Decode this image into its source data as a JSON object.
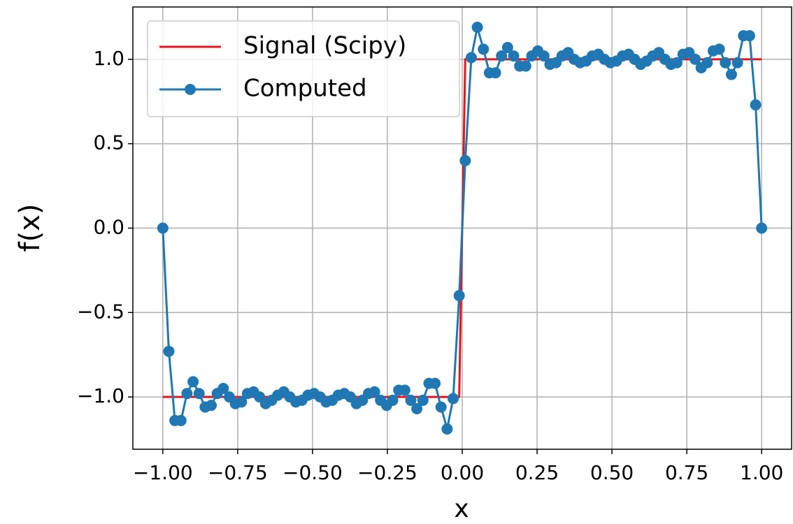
{
  "chart_data": {
    "type": "line",
    "x_label": "x",
    "y_label": "f(x)",
    "x": [
      -1,
      -0.9798,
      -0.9596,
      -0.9394,
      -0.9192,
      -0.899,
      -0.8788,
      -0.8586,
      -0.8384,
      -0.8182,
      -0.798,
      -0.7778,
      -0.7576,
      -0.7374,
      -0.7172,
      -0.697,
      -0.6768,
      -0.6566,
      -0.6364,
      -0.6162,
      -0.596,
      -0.5758,
      -0.5556,
      -0.5354,
      -0.5152,
      -0.4949,
      -0.4747,
      -0.4545,
      -0.4343,
      -0.4141,
      -0.3939,
      -0.3737,
      -0.3535,
      -0.3333,
      -0.3131,
      -0.2929,
      -0.2727,
      -0.2525,
      -0.2323,
      -0.2121,
      -0.1919,
      -0.1717,
      -0.1515,
      -0.1313,
      -0.1111,
      -0.0909,
      -0.0707,
      -0.0505,
      -0.0303,
      -0.0101,
      0.0101,
      0.0303,
      0.0505,
      0.0707,
      0.0909,
      0.1111,
      0.1313,
      0.1515,
      0.1717,
      0.1919,
      0.2121,
      0.2323,
      0.2525,
      0.2727,
      0.2929,
      0.3131,
      0.3333,
      0.3535,
      0.3737,
      0.3939,
      0.4141,
      0.4343,
      0.4545,
      0.4747,
      0.4949,
      0.5152,
      0.5354,
      0.5556,
      0.5758,
      0.596,
      0.6162,
      0.6364,
      0.6566,
      0.6768,
      0.697,
      0.7172,
      0.7374,
      0.7576,
      0.7778,
      0.798,
      0.8182,
      0.8384,
      0.8586,
      0.8788,
      0.899,
      0.9192,
      0.9394,
      0.9596,
      0.9798,
      1
    ],
    "series": [
      {
        "name": "Signal (Scipy)",
        "color": "#e8141c",
        "marker": false,
        "values": [
          -1,
          -1,
          -1,
          -1,
          -1,
          -1,
          -1,
          -1,
          -1,
          -1,
          -1,
          -1,
          -1,
          -1,
          -1,
          -1,
          -1,
          -1,
          -1,
          -1,
          -1,
          -1,
          -1,
          -1,
          -1,
          -1,
          -1,
          -1,
          -1,
          -1,
          -1,
          -1,
          -1,
          -1,
          -1,
          -1,
          -1,
          -1,
          -1,
          -1,
          -1,
          -1,
          -1,
          -1,
          -1,
          -1,
          -1,
          -1,
          -1,
          -1,
          1,
          1,
          1,
          1,
          1,
          1,
          1,
          1,
          1,
          1,
          1,
          1,
          1,
          1,
          1,
          1,
          1,
          1,
          1,
          1,
          1,
          1,
          1,
          1,
          1,
          1,
          1,
          1,
          1,
          1,
          1,
          1,
          1,
          1,
          1,
          1,
          1,
          1,
          1,
          1,
          1,
          1,
          1,
          1,
          1,
          1,
          1,
          1,
          1,
          1
        ]
      },
      {
        "name": "Computed",
        "color": "#1f77b4",
        "marker": true,
        "values": [
          0,
          -0.73,
          -1.14,
          -1.14,
          -0.98,
          -0.91,
          -0.98,
          -1.06,
          -1.05,
          -0.98,
          -0.95,
          -1.0,
          -1.04,
          -1.03,
          -0.98,
          -0.97,
          -1.0,
          -1.04,
          -1.02,
          -0.99,
          -0.97,
          -1.0,
          -1.03,
          -1.02,
          -0.99,
          -0.98,
          -1.0,
          -1.03,
          -1.02,
          -0.99,
          -0.98,
          -1.0,
          -1.04,
          -1.02,
          -0.98,
          -0.97,
          -1.02,
          -1.05,
          -1.02,
          -0.96,
          -0.96,
          -1.02,
          -1.07,
          -1.02,
          -0.92,
          -0.92,
          -1.06,
          -1.19,
          -1.01,
          -0.4,
          0.4,
          1.01,
          1.19,
          1.06,
          0.92,
          0.92,
          1.02,
          1.07,
          1.02,
          0.96,
          0.96,
          1.02,
          1.05,
          1.02,
          0.97,
          0.98,
          1.02,
          1.04,
          1.0,
          0.98,
          0.99,
          1.02,
          1.03,
          1.0,
          0.98,
          0.99,
          1.02,
          1.03,
          1.0,
          0.97,
          0.99,
          1.02,
          1.04,
          1.0,
          0.97,
          0.98,
          1.03,
          1.04,
          1.0,
          0.95,
          0.98,
          1.05,
          1.06,
          0.98,
          0.91,
          0.98,
          1.14,
          1.14,
          0.73,
          0
        ]
      }
    ],
    "xlim": [
      -1.1,
      1.1
    ],
    "ylim": [
      -1.31,
      1.31
    ],
    "xticks": [
      {
        "value": -1,
        "label": "−1.00"
      },
      {
        "value": -0.75,
        "label": "−0.75"
      },
      {
        "value": -0.5,
        "label": "−0.50"
      },
      {
        "value": -0.25,
        "label": "−0.25"
      },
      {
        "value": 0,
        "label": "0.00"
      },
      0.25,
      {
        "value": 0.5,
        "label": "0.50"
      },
      0.75,
      {
        "value": 1,
        "label": "1.00"
      }
    ],
    "yticks": [
      {
        "value": -1,
        "label": "−1.0"
      },
      {
        "value": -0.5,
        "label": "−0.5"
      },
      {
        "value": 0,
        "label": "0.0"
      },
      0.5,
      {
        "value": 1,
        "label": "1.0"
      }
    ],
    "grid": true,
    "legend": "upper left"
  }
}
